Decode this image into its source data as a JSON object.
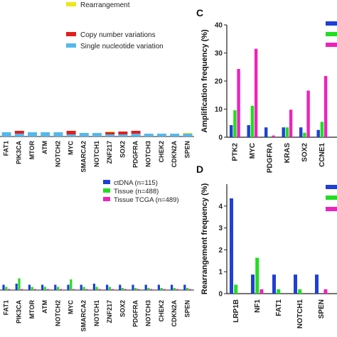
{
  "colors": {
    "ctdna": "#1f3fd6",
    "tissue": "#22dd22",
    "tcga": "#ee22bb",
    "rearrangement": "#e8e81a",
    "cnv": "#e01f1f",
    "snv": "#55b8ea",
    "axis": "#222222"
  },
  "chart_data": [
    {
      "id": "A",
      "type": "bar",
      "stacked": true,
      "categories": [
        "FAT1",
        "PIK3CA",
        "MTOR",
        "ATM",
        "NOTCH2",
        "MYC",
        "SMARCA2",
        "NOTCH1",
        "ZNF217",
        "SOX2",
        "PDGFRA",
        "NOTCH3",
        "CHEK2",
        "CDKN2A",
        "SPEN"
      ],
      "legend": [
        "Rearrangement",
        "Copy number variations",
        "Single nucleotide variation"
      ],
      "series": [
        {
          "name": "Single nucleotide variation",
          "values": [
            3.0,
            2.0,
            3.0,
            3.0,
            3.0,
            1.5,
            2.5,
            2.5,
            1.5,
            1.5,
            2.0,
            2.0,
            2.0,
            2.0,
            2.0
          ]
        },
        {
          "name": "Copy number variations",
          "values": [
            0,
            2.0,
            0,
            0,
            0,
            2.5,
            0,
            0,
            1.5,
            2.0,
            2.0,
            0,
            0,
            0,
            0
          ]
        },
        {
          "name": "Rearrangement",
          "values": [
            0,
            0,
            0,
            0,
            0,
            0,
            0,
            0,
            0.5,
            0,
            0,
            0,
            0,
            0,
            0.5
          ]
        }
      ]
    },
    {
      "id": "B",
      "type": "bar",
      "categories": [
        "FAT1",
        "PIK3CA",
        "MTOR",
        "ATM",
        "NOTCH2",
        "MYC",
        "SMARCA2",
        "NOTCH1",
        "ZNF217",
        "SOX2",
        "PDGFRA",
        "NOTCH3",
        "CHEK2",
        "CDKN2A",
        "SPEN"
      ],
      "legend": [
        "ctDNA (n=115)",
        "Tissue (n=488)",
        "Tissue TCGA (n=489)"
      ],
      "series": [
        {
          "name": "ctDNA (n=115)",
          "values": [
            2.5,
            3.0,
            2.5,
            2.5,
            2.5,
            2.5,
            2.5,
            3.0,
            2.5,
            2.5,
            2.5,
            2.5,
            2.5,
            2.5,
            2.5
          ]
        },
        {
          "name": "Tissue (n=488)",
          "values": [
            1.5,
            5.5,
            1.5,
            1.5,
            1.5,
            5.0,
            1.5,
            1.5,
            1.5,
            1.0,
            1.0,
            1.0,
            1.0,
            1.0,
            1.0
          ]
        },
        {
          "name": "Tissue TCGA (n=489)",
          "values": [
            0.5,
            0.5,
            0.5,
            0.5,
            0.5,
            0.5,
            0.5,
            0.5,
            0.5,
            0.5,
            0.5,
            0.5,
            0.5,
            0.5,
            0.5
          ]
        }
      ]
    },
    {
      "id": "C",
      "type": "bar",
      "ylabel": "Amplification frequency (%)",
      "ylim": [
        0,
        40
      ],
      "yticks": [
        0,
        10,
        20,
        30,
        40
      ],
      "categories": [
        "PTK2",
        "MYC",
        "PDGFRA",
        "KRAS",
        "SOX2",
        "CCNE1"
      ],
      "series": [
        {
          "name": "ctDNA",
          "values": [
            4.3,
            4.3,
            3.5,
            3.5,
            3.5,
            2.6
          ]
        },
        {
          "name": "Tissue",
          "values": [
            9.6,
            11.2,
            0.3,
            3.5,
            1.6,
            5.5
          ]
        },
        {
          "name": "Tissue TCGA",
          "values": [
            24.3,
            31.5,
            0.6,
            9.8,
            16.6,
            21.8
          ]
        }
      ]
    },
    {
      "id": "D",
      "type": "bar",
      "ylabel": "Rearrangement frequency (%)",
      "ylim": [
        0,
        5
      ],
      "yticks": [
        0,
        1,
        2,
        3,
        4
      ],
      "categories": [
        "LRP1B",
        "NF1",
        "FAT1",
        "NOTCH1",
        "SPEN"
      ],
      "series": [
        {
          "name": "ctDNA",
          "values": [
            4.35,
            0.87,
            0.87,
            0.87,
            0.87
          ]
        },
        {
          "name": "Tissue",
          "values": [
            0.41,
            1.64,
            0.2,
            0.2,
            0.0
          ]
        },
        {
          "name": "Tissue TCGA",
          "values": [
            0.0,
            0.2,
            0.0,
            0.0,
            0.2
          ]
        }
      ]
    }
  ],
  "panel_labels": {
    "c": "C",
    "d": "D"
  }
}
